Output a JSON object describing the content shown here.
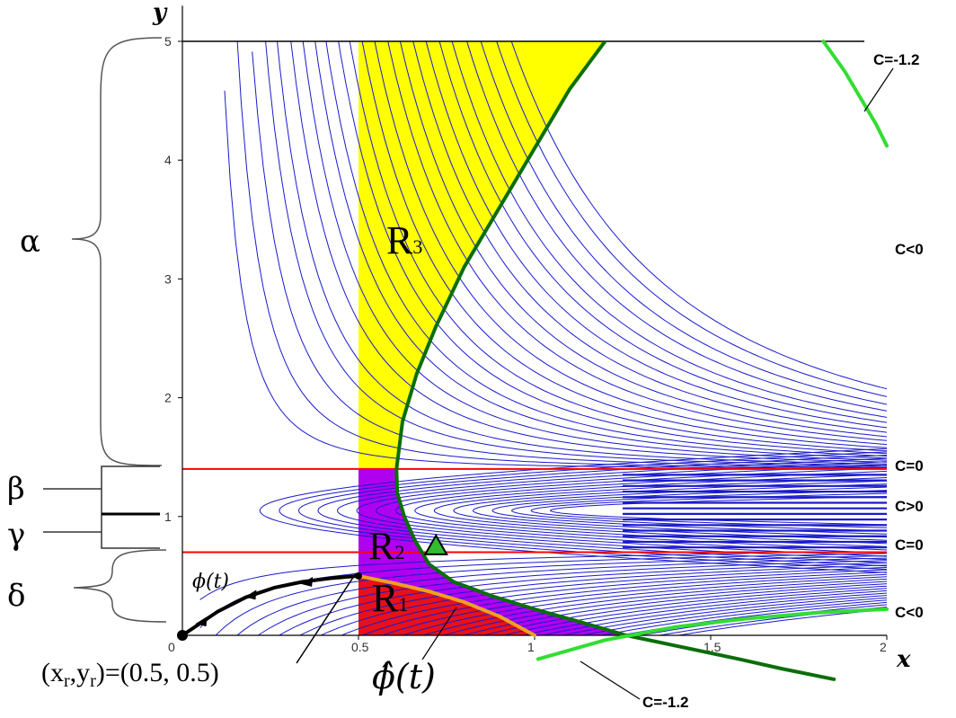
{
  "chart_data": {
    "type": "line",
    "title": "",
    "xlabel": "x",
    "ylabel": "y",
    "xlim": [
      0,
      2
    ],
    "ylim": [
      0,
      5
    ],
    "x_ticks": [
      "0",
      "0.5",
      "1",
      "1.5",
      "2"
    ],
    "y_ticks": [
      "1",
      "2",
      "3",
      "4",
      "5"
    ],
    "x_tick_values": [
      0,
      0.5,
      1,
      1.5,
      2
    ],
    "y_tick_values": [
      1,
      2,
      3,
      4,
      5
    ],
    "grid": false,
    "regions": [
      {
        "name": "R",
        "sub": "1",
        "color": "#e8101a",
        "x": [
          0.5,
          1.0
        ],
        "y": [
          0,
          0.5
        ]
      },
      {
        "name": "R",
        "sub": "2",
        "color": "#b000f0",
        "x": [
          0.5,
          1.2
        ],
        "y": [
          0,
          1.4
        ]
      },
      {
        "name": "R",
        "sub": "3",
        "color": "#ffff00",
        "x": [
          0.5,
          1.2
        ],
        "y": [
          1.4,
          5
        ]
      }
    ],
    "horizontal_lines": [
      {
        "y": 0.7,
        "color": "#ff0000"
      },
      {
        "y": 1.4,
        "color": "#ff0000"
      },
      {
        "y": 5.0,
        "color": "#000000"
      }
    ],
    "series": [
      {
        "color": "#0a6e0a",
        "x": [
          1.2,
          1.1,
          1.0,
          0.9,
          0.8,
          0.72,
          0.665,
          0.625,
          0.608,
          0.61,
          0.63,
          0.66,
          0.7,
          0.77,
          0.88,
          1.0,
          1.12,
          1.26,
          1.42,
          1.58,
          1.7,
          1.85
        ],
        "y": [
          5.0,
          4.6,
          4.1,
          3.6,
          3.1,
          2.6,
          2.2,
          1.8,
          1.4,
          1.2,
          1.0,
          0.8,
          0.6,
          0.45,
          0.33,
          0.22,
          0.12,
          0.0,
          -0.1,
          -0.2,
          -0.28,
          -0.37
        ]
      },
      {
        "color": "#33dd33",
        "x": [
          1.01,
          1.2,
          1.4,
          1.6,
          1.8,
          2.0
        ],
        "y": [
          -0.2,
          -0.04,
          0.07,
          0.14,
          0.19,
          0.22
        ]
      },
      {
        "color": "#33dd33",
        "x": [
          1.82,
          1.88,
          1.93,
          1.97,
          2.0
        ],
        "y": [
          5.0,
          4.75,
          4.5,
          4.3,
          4.12
        ]
      },
      {
        "color": "#f0a020",
        "x": [
          0.5,
          0.6,
          0.7,
          0.8,
          0.9,
          1.0
        ],
        "y": [
          0.5,
          0.44,
          0.37,
          0.28,
          0.16,
          0.0
        ]
      },
      {
        "color": "#000000",
        "x": [
          0.5,
          0.42,
          0.34,
          0.26,
          0.18,
          0.1,
          0.0
        ],
        "y": [
          0.5,
          0.48,
          0.45,
          0.4,
          0.32,
          0.2,
          0.0
        ]
      }
    ],
    "points": [
      {
        "x": 0.0,
        "y": 0.0,
        "marker": "circle",
        "color": "#000000"
      },
      {
        "x": 0.5,
        "y": 0.5,
        "marker": "circle",
        "color": "#000000"
      },
      {
        "x": 0.72,
        "y": 0.75,
        "marker": "triangle",
        "color": "#33bb33"
      }
    ]
  },
  "labels": {
    "c_neg12_top": "C=-1.2",
    "c_neg_top": "C<0",
    "c_zero_top": "C=0",
    "c_pos": "C>0",
    "c_zero_bottom": "C=0",
    "c_neg_bottom": "C<0",
    "c_neg12_bottom": "C=-1.2",
    "alpha": "α",
    "beta": "β",
    "gamma": "γ",
    "delta": "δ",
    "phi": "ϕ(t)",
    "phi_hat": "ϕ̂(t)",
    "point_r": "(x",
    "point_r_sub1": "r",
    "point_r_comma": ",y",
    "point_r_sub2": "r",
    "point_r_val": ")=(0.5, 0.5)",
    "r1": "R",
    "r1_sub": "1",
    "r2": "R",
    "r2_sub": "2",
    "r3": "R",
    "r3_sub": "3"
  },
  "colors": {
    "contour": "#1a1acc",
    "red_line": "#ff0000",
    "dark_green": "#0a6e0a",
    "light_green": "#33dd33",
    "orange": "#f0a020",
    "yellow": "#ffff00",
    "purple": "#b000f0",
    "red_region": "#e8101a"
  }
}
